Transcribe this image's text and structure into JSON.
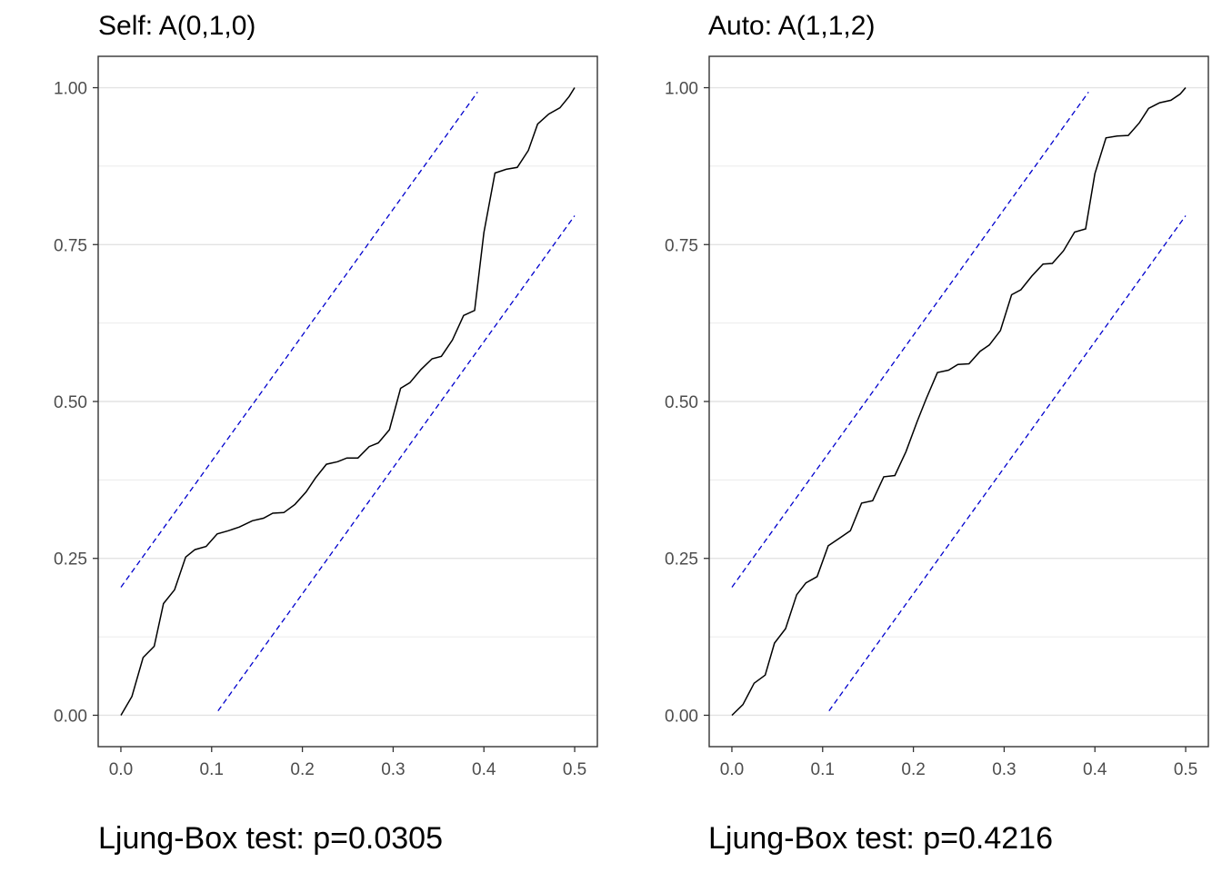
{
  "chart_data": [
    {
      "type": "line",
      "title": "Self: A(0,1,0)",
      "caption": "Ljung-Box test: p=0.0305",
      "xlim": [
        -0.025,
        0.525
      ],
      "ylim": [
        -0.05,
        1.05
      ],
      "x_ticks": [
        "0.0",
        "0.1",
        "0.2",
        "0.3",
        "0.4",
        "0.5"
      ],
      "x_tick_values": [
        0,
        0.1,
        0.2,
        0.3,
        0.4,
        0.5
      ],
      "y_ticks": [
        "0.00",
        "0.25",
        "0.50",
        "0.75",
        "1.00"
      ],
      "y_tick_values": [
        0,
        0.25,
        0.5,
        0.75,
        1.0
      ],
      "grid": "horizontal",
      "series": [
        {
          "style": "solid",
          "color": "#000000",
          "x": [
            0.0,
            0.0122,
            0.0245,
            0.0367,
            0.0469,
            0.0592,
            0.0714,
            0.0816,
            0.0939,
            0.1061,
            0.1184,
            0.1306,
            0.1449,
            0.1571,
            0.1673,
            0.1796,
            0.1918,
            0.2041,
            0.2143,
            0.2265,
            0.2388,
            0.249,
            0.2612,
            0.2735,
            0.2837,
            0.2959,
            0.3082,
            0.3184,
            0.3306,
            0.3429,
            0.3531,
            0.3653,
            0.3776,
            0.3898,
            0.4,
            0.4122,
            0.4245,
            0.4367,
            0.449,
            0.4592,
            0.4714,
            0.4837,
            0.4939,
            0.5
          ],
          "y": [
            0.0,
            0.03,
            0.092,
            0.11,
            0.178,
            0.2,
            0.252,
            0.264,
            0.269,
            0.289,
            0.294,
            0.3,
            0.31,
            0.314,
            0.322,
            0.323,
            0.336,
            0.356,
            0.378,
            0.4,
            0.404,
            0.41,
            0.41,
            0.428,
            0.434,
            0.455,
            0.521,
            0.53,
            0.551,
            0.568,
            0.572,
            0.598,
            0.637,
            0.645,
            0.769,
            0.864,
            0.87,
            0.873,
            0.9,
            0.942,
            0.958,
            0.968,
            0.986,
            1.0
          ]
        },
        {
          "style": "dashed",
          "color": "#0000CD",
          "x": [
            0.0,
            0.393
          ],
          "y": [
            0.204,
            0.993
          ]
        },
        {
          "style": "dashed",
          "color": "#0000CD",
          "x": [
            0.107,
            0.5
          ],
          "y": [
            0.007,
            0.796
          ]
        }
      ]
    },
    {
      "type": "line",
      "title": "Auto: A(1,1,2)",
      "caption": "Ljung-Box test: p=0.4216",
      "xlim": [
        -0.025,
        0.525
      ],
      "ylim": [
        -0.05,
        1.05
      ],
      "x_ticks": [
        "0.0",
        "0.1",
        "0.2",
        "0.3",
        "0.4",
        "0.5"
      ],
      "x_tick_values": [
        0,
        0.1,
        0.2,
        0.3,
        0.4,
        0.5
      ],
      "y_ticks": [
        "0.00",
        "0.25",
        "0.50",
        "0.75",
        "1.00"
      ],
      "y_tick_values": [
        0,
        0.25,
        0.5,
        0.75,
        1.0
      ],
      "grid": "horizontal",
      "series": [
        {
          "style": "solid",
          "color": "#000000",
          "x": [
            0.0,
            0.0122,
            0.0245,
            0.0367,
            0.0469,
            0.0592,
            0.0714,
            0.0816,
            0.0939,
            0.1061,
            0.1184,
            0.1306,
            0.1429,
            0.1551,
            0.1673,
            0.1796,
            0.1918,
            0.2041,
            0.2143,
            0.2265,
            0.2388,
            0.249,
            0.2612,
            0.2735,
            0.2837,
            0.2959,
            0.3082,
            0.3184,
            0.3306,
            0.3429,
            0.3531,
            0.3653,
            0.3776,
            0.3898,
            0.4,
            0.4122,
            0.4245,
            0.4367,
            0.449,
            0.4592,
            0.4714,
            0.4837,
            0.4939,
            0.5
          ],
          "y": [
            0.0,
            0.017,
            0.051,
            0.064,
            0.115,
            0.138,
            0.192,
            0.211,
            0.221,
            0.27,
            0.282,
            0.294,
            0.338,
            0.342,
            0.38,
            0.382,
            0.42,
            0.468,
            0.505,
            0.546,
            0.55,
            0.559,
            0.56,
            0.58,
            0.59,
            0.613,
            0.67,
            0.678,
            0.7,
            0.719,
            0.72,
            0.74,
            0.77,
            0.775,
            0.863,
            0.92,
            0.923,
            0.924,
            0.944,
            0.967,
            0.976,
            0.98,
            0.99,
            1.0
          ]
        },
        {
          "style": "dashed",
          "color": "#0000CD",
          "x": [
            0.0,
            0.393
          ],
          "y": [
            0.204,
            0.993
          ]
        },
        {
          "style": "dashed",
          "color": "#0000CD",
          "x": [
            0.107,
            0.5
          ],
          "y": [
            0.007,
            0.796
          ]
        }
      ]
    }
  ]
}
